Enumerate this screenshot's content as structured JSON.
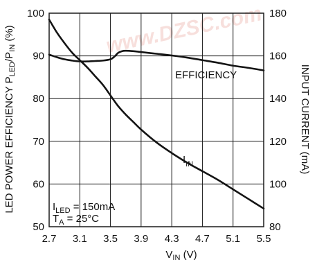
{
  "chart_data": {
    "type": "line",
    "title": "",
    "xlabel": {
      "main": "V",
      "sub": "IN",
      "unit": " (V)"
    },
    "ylabel_left": {
      "parts": [
        "LED POWER EFFICIENCY P",
        "LED",
        "/P",
        "IN",
        " (%)"
      ]
    },
    "ylabel_right": "INPUT CURRENT (mA)",
    "x_ticks": [
      "2.7",
      "3.1",
      "3.5",
      "3.9",
      "4.3",
      "4.7",
      "5.1",
      "5.5"
    ],
    "x_tick_values": [
      2.7,
      3.1,
      3.5,
      3.9,
      4.3,
      4.7,
      5.1,
      5.5
    ],
    "y_left_ticks": [
      "50",
      "60",
      "70",
      "80",
      "90",
      "100"
    ],
    "y_left_tick_values": [
      50,
      60,
      70,
      80,
      90,
      100
    ],
    "y_right_ticks": [
      "80",
      "100",
      "120",
      "140",
      "160",
      "180"
    ],
    "y_right_tick_values": [
      80,
      100,
      120,
      140,
      160,
      180
    ],
    "xlim": [
      2.7,
      5.5
    ],
    "ylim_left": [
      50,
      100
    ],
    "ylim_right": [
      80,
      180
    ],
    "grid": true,
    "series": [
      {
        "name": "EFFICIENCY",
        "axis": "left",
        "x": [
          2.7,
          2.8,
          2.9,
          3.0,
          3.1,
          3.2,
          3.3,
          3.4,
          3.5,
          3.55,
          3.6,
          3.65,
          3.7,
          3.8,
          3.9,
          4.1,
          4.3,
          4.5,
          4.7,
          4.9,
          5.1,
          5.3,
          5.5
        ],
        "y": [
          90.3,
          89.7,
          89.2,
          88.9,
          88.7,
          88.7,
          88.8,
          88.9,
          89.2,
          89.8,
          90.7,
          91.1,
          91.2,
          91.1,
          90.9,
          90.5,
          90.1,
          89.6,
          89.0,
          88.4,
          87.7,
          87.2,
          86.6
        ]
      },
      {
        "name": "I_IN",
        "axis": "right",
        "x": [
          2.7,
          2.8,
          2.9,
          3.0,
          3.1,
          3.2,
          3.3,
          3.4,
          3.5,
          3.6,
          3.7,
          3.8,
          3.9,
          4.1,
          4.3,
          4.5,
          4.7,
          4.9,
          5.1,
          5.3,
          5.5
        ],
        "y": [
          177,
          171,
          166,
          161.5,
          158,
          154.5,
          150.5,
          146.5,
          141.5,
          136.5,
          132.5,
          129,
          125.5,
          119.5,
          114.5,
          110,
          106,
          102,
          97.5,
          93,
          88.5
        ]
      }
    ],
    "labels": {
      "efficiency": "EFFICIENCY",
      "iin_main": "I",
      "iin_sub": "IN"
    },
    "conditions": {
      "line1_main": "I",
      "line1_sub": "LED",
      "line1_rest": " = 150mA",
      "line2_main": "T",
      "line2_sub": "A",
      "line2_rest": " = 25°C"
    },
    "watermark": "www.DZSC.com",
    "colors": {
      "curve": "#141414",
      "grid": "#1a1a1a",
      "watermark": "#f2c6c0"
    }
  }
}
